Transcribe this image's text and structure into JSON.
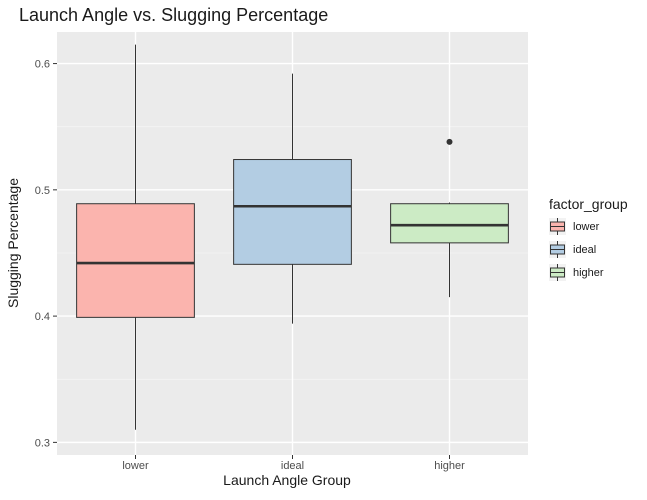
{
  "chart_data": {
    "type": "boxplot",
    "title": "Launch Angle vs. Slugging Percentage",
    "xlabel": "Launch Angle Group",
    "ylabel": "Slugging Percentage",
    "ylim": [
      0.29,
      0.625
    ],
    "y_ticks": [
      0.3,
      0.4,
      0.5,
      0.6
    ],
    "y_tick_labels": [
      "0.3",
      "0.4",
      "0.5",
      "0.6"
    ],
    "categories": [
      "lower",
      "ideal",
      "higher"
    ],
    "boxes": [
      {
        "category": "lower",
        "min": 0.31,
        "q1": 0.399,
        "median": 0.442,
        "q3": 0.489,
        "max": 0.615,
        "outliers": []
      },
      {
        "category": "ideal",
        "min": 0.394,
        "q1": 0.441,
        "median": 0.487,
        "q3": 0.524,
        "max": 0.592,
        "outliers": []
      },
      {
        "category": "higher",
        "min": 0.415,
        "q1": 0.458,
        "median": 0.472,
        "q3": 0.489,
        "max": 0.49,
        "outliers": [
          0.538
        ]
      }
    ],
    "legend": {
      "title": "factor_group",
      "position": "right",
      "items": [
        {
          "label": "lower",
          "color": "#fbb4ae"
        },
        {
          "label": "ideal",
          "color": "#b3cde3"
        },
        {
          "label": "higher",
          "color": "#ccebc5"
        }
      ]
    },
    "grid": true,
    "colors": {
      "panel_bg": "#ebebeb",
      "grid_major": "#ffffff",
      "grid_minor": "#f5f5f5",
      "box_stroke": "#333333"
    }
  }
}
